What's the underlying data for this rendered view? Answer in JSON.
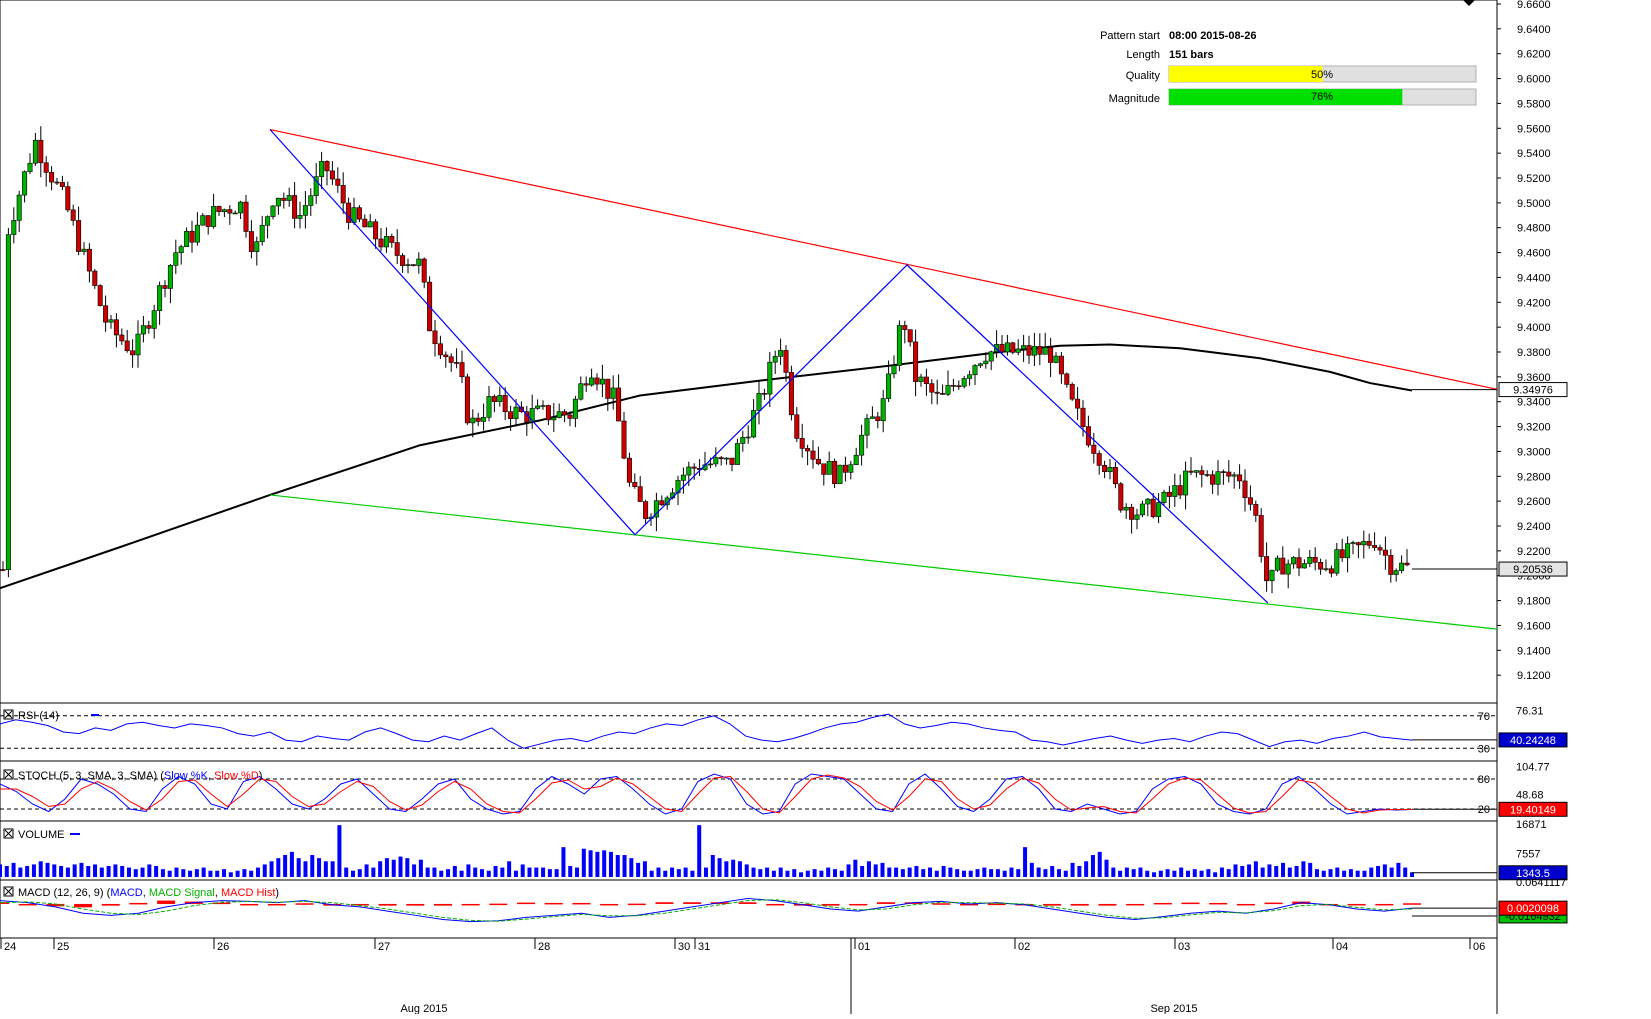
{
  "info_panel": {
    "pattern_start_label": "Pattern start",
    "pattern_start_value": "08:00 2015-08-26",
    "length_label": "Length",
    "length_value": "151 bars",
    "quality_label": "Quality",
    "quality_value": "50%",
    "quality_fraction": 0.5,
    "quality_color": "#ffff00",
    "magnitude_label": "Magnitude",
    "magnitude_value": "76%",
    "magnitude_fraction": 0.76,
    "magnitude_color": "#00e000"
  },
  "chart_data": [
    {
      "type": "candlestick",
      "ylim": [
        9.1,
        9.66
      ],
      "y_ticks": [
        "9.6600",
        "9.6400",
        "9.6200",
        "9.6000",
        "9.5800",
        "9.5600",
        "9.5400",
        "9.5200",
        "9.5000",
        "9.4800",
        "9.4600",
        "9.4400",
        "9.4200",
        "9.4000",
        "9.3800",
        "9.3600",
        "9.3400",
        "9.3200",
        "9.3000",
        "9.2800",
        "9.2600",
        "9.2400",
        "9.2200",
        "9.2000",
        "9.1800",
        "9.1600",
        "9.1400",
        "9.1200"
      ],
      "last_price_label": "9.20536",
      "last_price": 9.20536,
      "ma_label": "9.34976",
      "ma_value": 9.34976,
      "pattern": {
        "resistance": {
          "color": "#ff0000",
          "from": {
            "x": 270,
            "y": 9.559
          },
          "to": {
            "x": 1497,
            "y": 9.35
          }
        },
        "support": {
          "color": "#00cc00",
          "from": {
            "x": 270,
            "y": 9.265
          },
          "to": {
            "x": 1497,
            "y": 9.157
          }
        },
        "zigzag": {
          "color": "#0000ff",
          "points": [
            [
              270,
              9.559
            ],
            [
              635,
              9.233
            ],
            [
              907,
              9.45
            ],
            [
              1268,
              9.178
            ]
          ]
        }
      },
      "moving_average": {
        "color": "#000000",
        "points": [
          [
            0,
            9.19
          ],
          [
            120,
            9.223
          ],
          [
            270,
            9.265
          ],
          [
            420,
            9.305
          ],
          [
            540,
            9.325
          ],
          [
            640,
            9.345
          ],
          [
            760,
            9.357
          ],
          [
            900,
            9.37
          ],
          [
            1000,
            9.38
          ],
          [
            1060,
            9.385
          ],
          [
            1110,
            9.386
          ],
          [
            1180,
            9.383
          ],
          [
            1260,
            9.375
          ],
          [
            1330,
            9.364
          ],
          [
            1370,
            9.355
          ],
          [
            1412,
            9.349
          ]
        ]
      },
      "candles": {
        "anchors": [
          [
            5,
            9.47
          ],
          [
            35,
            9.55
          ],
          [
            65,
            9.5
          ],
          [
            108,
            9.4
          ],
          [
            135,
            9.38
          ],
          [
            175,
            9.46
          ],
          [
            210,
            9.49
          ],
          [
            240,
            9.5
          ],
          [
            255,
            9.46
          ],
          [
            275,
            9.51
          ],
          [
            300,
            9.49
          ],
          [
            325,
            9.53
          ],
          [
            350,
            9.49
          ],
          [
            395,
            9.46
          ],
          [
            420,
            9.45
          ],
          [
            430,
            9.4
          ],
          [
            460,
            9.36
          ],
          [
            470,
            9.32
          ],
          [
            490,
            9.34
          ],
          [
            520,
            9.33
          ],
          [
            545,
            9.33
          ],
          [
            570,
            9.33
          ],
          [
            590,
            9.37
          ],
          [
            615,
            9.34
          ],
          [
            630,
            9.27
          ],
          [
            645,
            9.25
          ],
          [
            680,
            9.28
          ],
          [
            700,
            9.29
          ],
          [
            730,
            9.29
          ],
          [
            760,
            9.34
          ],
          [
            780,
            9.39
          ],
          [
            795,
            9.32
          ],
          [
            820,
            9.29
          ],
          [
            840,
            9.28
          ],
          [
            860,
            9.31
          ],
          [
            885,
            9.34
          ],
          [
            903,
            9.41
          ],
          [
            915,
            9.36
          ],
          [
            940,
            9.34
          ],
          [
            960,
            9.36
          ],
          [
            985,
            9.38
          ],
          [
            1010,
            9.38
          ],
          [
            1050,
            9.38
          ],
          [
            1070,
            9.34
          ],
          [
            1090,
            9.31
          ],
          [
            1105,
            9.29
          ],
          [
            1120,
            9.26
          ],
          [
            1140,
            9.25
          ],
          [
            1165,
            9.26
          ],
          [
            1190,
            9.28
          ],
          [
            1220,
            9.28
          ],
          [
            1240,
            9.28
          ],
          [
            1255,
            9.25
          ],
          [
            1268,
            9.19
          ],
          [
            1280,
            9.21
          ],
          [
            1300,
            9.21
          ],
          [
            1330,
            9.21
          ],
          [
            1355,
            9.22
          ],
          [
            1375,
            9.23
          ],
          [
            1390,
            9.21
          ],
          [
            1412,
            9.205
          ]
        ],
        "up_color": "#00b000",
        "down_color": "#cc0000"
      }
    },
    {
      "type": "line",
      "title": "RSI (14)",
      "ylim": [
        18,
        82
      ],
      "levels": [
        70,
        30
      ],
      "tick_labels": [
        "76.31",
        "70",
        "30"
      ],
      "last_label": "40.24248",
      "line_color": "#0000ff",
      "series": [
        {
          "values": [
            60,
            65,
            62,
            58,
            50,
            48,
            55,
            52,
            60,
            62,
            58,
            55,
            60,
            58,
            55,
            48,
            45,
            50,
            40,
            38,
            45,
            42,
            40,
            50,
            55,
            48,
            40,
            38,
            45,
            40,
            48,
            55,
            40,
            30,
            35,
            40,
            42,
            38,
            45,
            50,
            48,
            55,
            60,
            58,
            65,
            70,
            60,
            45,
            40,
            38,
            42,
            48,
            55,
            60,
            62,
            68,
            72,
            60,
            55,
            58,
            62,
            60,
            55,
            52,
            50,
            40,
            38,
            34,
            38,
            42,
            45,
            40,
            36,
            40,
            42,
            38,
            45,
            50,
            48,
            40,
            32,
            38,
            40,
            36,
            42,
            45,
            50,
            44,
            42,
            40
          ]
        }
      ]
    },
    {
      "type": "line",
      "title": "STOCH (5, 3, SMA, 3, SMA)",
      "legend": [
        "Slow %K",
        "Slow %D"
      ],
      "legend_colors": [
        "#0000ff",
        "#ff0000"
      ],
      "ylim": [
        0,
        110
      ],
      "levels": [
        80,
        20
      ],
      "tick_labels": [
        "104.77",
        "80",
        "48.68",
        "20"
      ],
      "last_label": "19.40149",
      "series": [
        {
          "name": "Slow %K",
          "values": [
            70,
            55,
            30,
            15,
            40,
            80,
            70,
            50,
            20,
            15,
            60,
            85,
            70,
            30,
            20,
            75,
            85,
            60,
            30,
            20,
            40,
            70,
            80,
            50,
            20,
            15,
            40,
            70,
            80,
            40,
            20,
            10,
            15,
            60,
            85,
            70,
            50,
            80,
            85,
            60,
            30,
            10,
            20,
            75,
            90,
            80,
            30,
            10,
            15,
            70,
            90,
            85,
            80,
            50,
            20,
            15,
            70,
            90,
            60,
            25,
            15,
            40,
            80,
            85,
            60,
            20,
            15,
            30,
            20,
            10,
            15,
            60,
            80,
            85,
            70,
            30,
            15,
            10,
            20,
            70,
            85,
            60,
            30,
            10,
            15,
            20,
            18,
            19
          ]
        },
        {
          "name": "Slow %D",
          "values": [
            60,
            60,
            45,
            25,
            30,
            60,
            75,
            60,
            35,
            18,
            40,
            75,
            78,
            50,
            25,
            50,
            80,
            75,
            45,
            25,
            30,
            55,
            75,
            65,
            35,
            18,
            28,
            55,
            75,
            60,
            30,
            15,
            12,
            40,
            72,
            78,
            60,
            65,
            82,
            70,
            45,
            20,
            15,
            50,
            82,
            85,
            55,
            20,
            12,
            45,
            80,
            88,
            82,
            65,
            35,
            18,
            45,
            80,
            75,
            40,
            20,
            28,
            60,
            82,
            72,
            40,
            18,
            22,
            25,
            15,
            12,
            40,
            70,
            82,
            78,
            50,
            22,
            12,
            15,
            45,
            78,
            72,
            45,
            20,
            12,
            18,
            19,
            19
          ]
        }
      ]
    },
    {
      "type": "bar",
      "title": "VOLUME",
      "ylim": [
        0,
        16871
      ],
      "tick_labels": [
        "16871",
        "7557"
      ],
      "last_label": "1343.5",
      "bar_color": "#0000ff",
      "values": [
        4000,
        3500,
        4500,
        3000,
        3500,
        4000,
        5000,
        4500,
        4000,
        3500,
        3000,
        4000,
        4500,
        3500,
        4000,
        3000,
        3500,
        4000,
        3500,
        3000,
        2500,
        3000,
        4000,
        3500,
        2500,
        2000,
        3000,
        2500,
        2000,
        2500,
        3000,
        2000,
        2000,
        2500,
        1500,
        2000,
        2500,
        2000,
        3000,
        4000,
        5000,
        6000,
        7000,
        8000,
        6000,
        5000,
        7000,
        6000,
        5000,
        5000,
        16500,
        3000,
        2000,
        2500,
        4000,
        3000,
        5000,
        6000,
        5500,
        6500,
        6000,
        4000,
        5500,
        3000,
        3000,
        2000,
        2500,
        3500,
        2000,
        4000,
        3000,
        2500,
        2000,
        3500,
        3000,
        5000,
        2000,
        4000,
        3000,
        3000,
        3000,
        2500,
        2500,
        9500,
        3500,
        3000,
        9000,
        8500,
        8000,
        8500,
        8000,
        7000,
        7000,
        6000,
        4500,
        5000,
        2000,
        3000,
        2000,
        3000,
        2500,
        3000,
        2000,
        16500,
        3000,
        7000,
        6000,
        5000,
        5500,
        5000,
        4000,
        3000,
        2500,
        3000,
        2000,
        3000,
        2000,
        2500,
        1500,
        2000,
        2500,
        2000,
        3000,
        2500,
        2000,
        4000,
        5500,
        3500,
        5000,
        4000,
        4500,
        3000,
        3000,
        2500,
        3000,
        3500,
        2500,
        3000,
        2000,
        3500,
        3000,
        2500,
        2000,
        2000,
        2500,
        3000,
        2500,
        2500,
        2000,
        3000,
        2500,
        9500,
        4500,
        3000,
        2500,
        3500,
        2500,
        2000,
        4500,
        3500,
        5000,
        7000,
        8000,
        5500,
        3000,
        2000,
        3000,
        2500,
        3000,
        2000,
        1500,
        2000,
        2500,
        2000,
        3000,
        2000,
        2500,
        2000,
        2500,
        1500,
        3000,
        2500,
        4000,
        3500,
        4000,
        5000,
        3000,
        4000,
        3500,
        4500,
        3000,
        3500,
        5000,
        4500,
        2500,
        2000,
        2500,
        3000,
        2000,
        2500,
        2000,
        2000,
        3000,
        3500,
        4000,
        3000,
        4500,
        3000,
        1500
      ]
    },
    {
      "type": "line",
      "title": "MACD (12, 26, 9)",
      "legend": [
        "MACD",
        "MACD Signal",
        "MACD Hist"
      ],
      "legend_colors": [
        "#0000ff",
        "#00b000",
        "#ff0000"
      ],
      "ylim": [
        -0.0641117,
        0.0641117
      ],
      "tick_labels": [
        "0.0641117",
        "0.0020098",
        "-0.0164932"
      ],
      "last_label": "0.0020098",
      "series": [
        {
          "name": "MACD",
          "values": [
            0.02,
            0.015,
            0.005,
            -0.01,
            -0.015,
            -0.01,
            0.005,
            0.015,
            0.02,
            0.018,
            0.015,
            0.02,
            0.01,
            0.005,
            -0.005,
            -0.015,
            -0.025,
            -0.03,
            -0.028,
            -0.02,
            -0.015,
            -0.01,
            -0.02,
            -0.015,
            -0.005,
            0.005,
            0.015,
            0.025,
            0.02,
            0.01,
            0.0,
            -0.005,
            0.005,
            0.015,
            0.018,
            0.012,
            0.015,
            0.01,
            0.0,
            -0.01,
            -0.02,
            -0.025,
            -0.018,
            -0.01,
            -0.005,
            -0.01,
            0.0,
            0.015,
            0.01,
            0.0,
            -0.005,
            0.002
          ]
        },
        {
          "name": "MACD Signal",
          "values": [
            0.015,
            0.017,
            0.012,
            0.0,
            -0.01,
            -0.013,
            -0.005,
            0.008,
            0.016,
            0.018,
            0.016,
            0.018,
            0.015,
            0.008,
            0.0,
            -0.01,
            -0.02,
            -0.027,
            -0.029,
            -0.024,
            -0.018,
            -0.013,
            -0.016,
            -0.016,
            -0.01,
            0.0,
            0.01,
            0.02,
            0.022,
            0.015,
            0.005,
            -0.002,
            0.0,
            0.01,
            0.016,
            0.015,
            0.014,
            0.012,
            0.005,
            -0.005,
            -0.015,
            -0.022,
            -0.021,
            -0.014,
            -0.008,
            -0.009,
            -0.004,
            0.008,
            0.011,
            0.004,
            -0.002,
            0.0
          ]
        },
        {
          "name": "MACD Hist",
          "values": [
            0.005,
            -0.002,
            -0.007,
            -0.01,
            -0.005,
            0.003,
            0.01,
            0.007,
            0.004,
            0.0,
            -0.001,
            0.002,
            -0.005,
            -0.003,
            -0.005,
            -0.005,
            -0.005,
            -0.003,
            0.001,
            0.004,
            0.003,
            0.003,
            -0.004,
            0.001,
            0.005,
            0.005,
            0.005,
            0.005,
            -0.002,
            -0.005,
            -0.005,
            -0.003,
            0.005,
            0.005,
            0.002,
            -0.003,
            0.001,
            -0.002,
            -0.005,
            -0.005,
            -0.005,
            -0.003,
            0.003,
            0.004,
            0.003,
            -0.001,
            0.004,
            0.007,
            -0.001,
            -0.004,
            -0.003,
            0.002
          ]
        }
      ]
    }
  ],
  "x_axis": {
    "day_labels": [
      {
        "label": "24",
        "x": 4
      },
      {
        "label": "25",
        "x": 57
      },
      {
        "label": "26",
        "x": 217
      },
      {
        "label": "27",
        "x": 378
      },
      {
        "label": "28",
        "x": 538
      },
      {
        "label": "30",
        "x": 678
      },
      {
        "label": "31",
        "x": 698
      },
      {
        "label": "01",
        "x": 858
      },
      {
        "label": "02",
        "x": 1018
      },
      {
        "label": "03",
        "x": 1178
      },
      {
        "label": "04",
        "x": 1336
      },
      {
        "label": "06",
        "x": 1473
      }
    ],
    "month_labels": [
      {
        "label": "Aug 2015",
        "x": 424
      },
      {
        "label": "Sep 2015",
        "x": 1174
      }
    ]
  }
}
